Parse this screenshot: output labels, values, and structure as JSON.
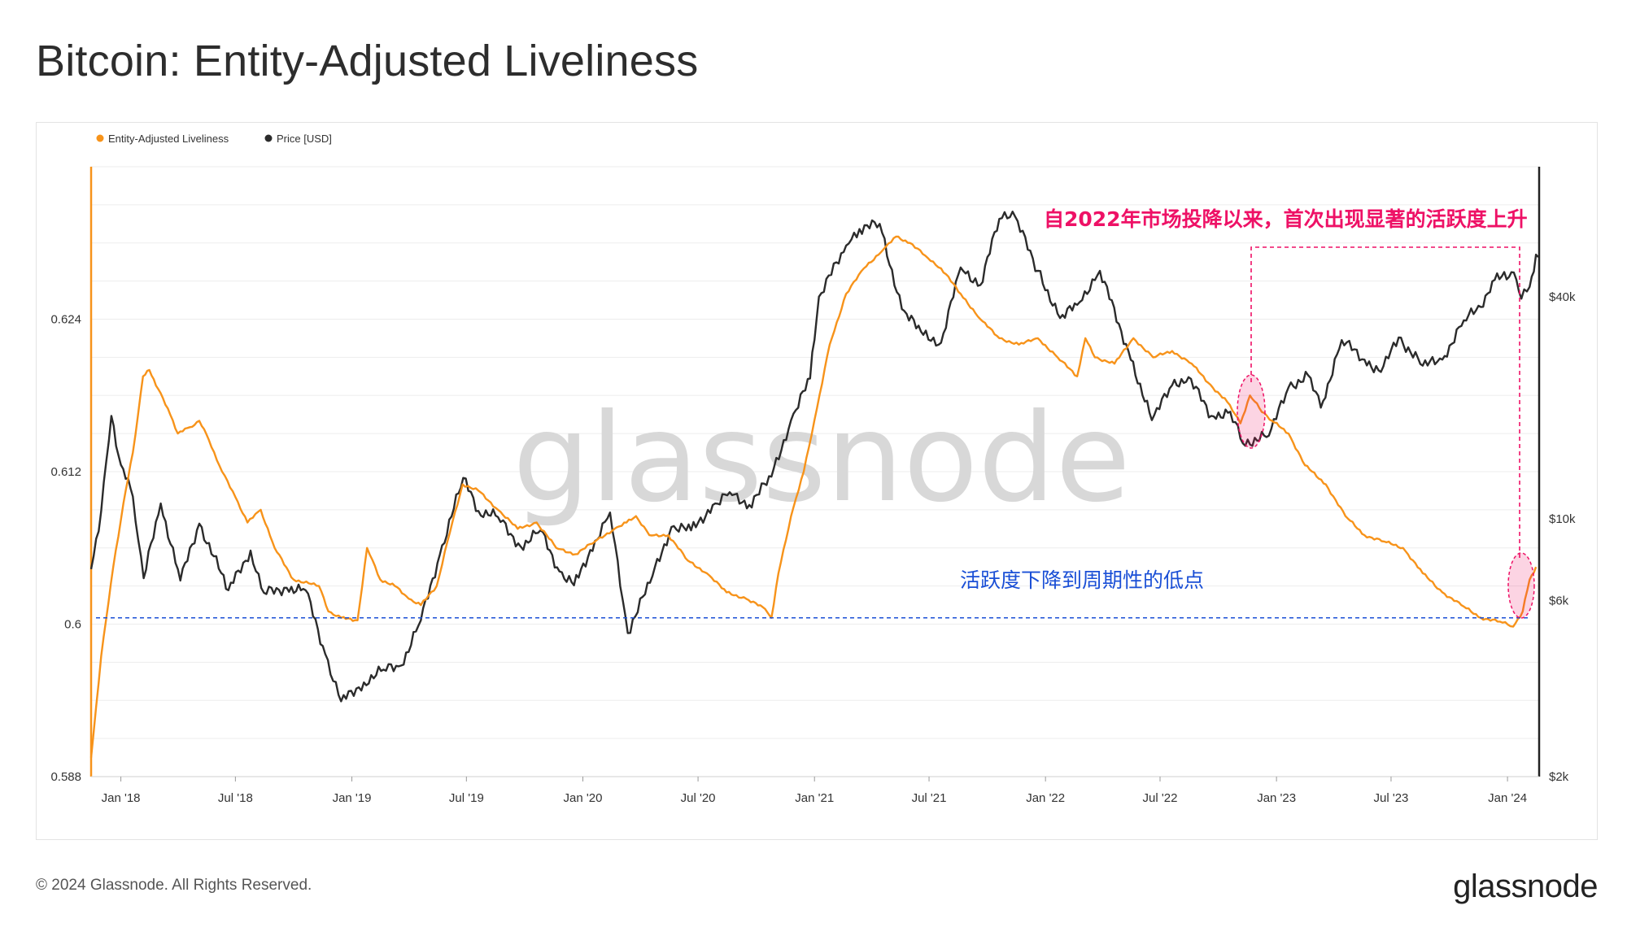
{
  "title": "Bitcoin: Entity-Adjusted Liveliness",
  "footer": "© 2024 Glassnode. All Rights Reserved.",
  "brand": "glassnode",
  "watermark": "glassnode",
  "colors": {
    "liveliness": "#f7931a",
    "price": "#2b2b2b",
    "annotation_red": "#ee1166",
    "annotation_blue": "#1a4fd6"
  },
  "chart_data": {
    "type": "line",
    "legend": [
      "Entity-Adjusted Liveliness",
      "Price [USD]"
    ],
    "legend_position": "top-left",
    "x_ticks": [
      "Jan '18",
      "Jul '18",
      "Jan '19",
      "Jul '19",
      "Jan '20",
      "Jul '20",
      "Jan '21",
      "Jul '21",
      "Jan '22",
      "Jul '22",
      "Jan '23",
      "Jul '23",
      "Jan '24"
    ],
    "y_left_ticks": [
      "0.624",
      "0.612",
      "0.6",
      "0.588"
    ],
    "y_left_range": [
      0.588,
      0.636
    ],
    "y_right_ticks": [
      "$40k",
      "$10k",
      "$6k",
      "$2k"
    ],
    "y_right_scale": "log",
    "grid": true,
    "x_range": [
      "2017-11-15",
      "2024-02-20"
    ],
    "series": [
      {
        "name": "Entity-Adjusted Liveliness",
        "axis": "left",
        "points": [
          [
            "2017-11-15",
            0.5895
          ],
          [
            "2017-12-01",
            0.5975
          ],
          [
            "2017-12-20",
            0.6045
          ],
          [
            "2018-01-05",
            0.6095
          ],
          [
            "2018-01-20",
            0.6135
          ],
          [
            "2018-02-05",
            0.6195
          ],
          [
            "2018-02-15",
            0.62
          ],
          [
            "2018-03-01",
            0.6185
          ],
          [
            "2018-03-20",
            0.6165
          ],
          [
            "2018-04-01",
            0.615
          ],
          [
            "2018-04-20",
            0.6155
          ],
          [
            "2018-05-05",
            0.616
          ],
          [
            "2018-05-20",
            0.6145
          ],
          [
            "2018-06-10",
            0.612
          ],
          [
            "2018-07-01",
            0.61
          ],
          [
            "2018-07-20",
            0.608
          ],
          [
            "2018-08-10",
            0.609
          ],
          [
            "2018-09-01",
            0.606
          ],
          [
            "2018-10-01",
            0.6035
          ],
          [
            "2018-11-10",
            0.603
          ],
          [
            "2018-11-25",
            0.601
          ],
          [
            "2018-12-15",
            0.6005
          ],
          [
            "2019-01-10",
            0.6003
          ],
          [
            "2019-01-25",
            0.606
          ],
          [
            "2019-02-15",
            0.6035
          ],
          [
            "2019-03-10",
            0.603
          ],
          [
            "2019-04-01",
            0.602
          ],
          [
            "2019-04-20",
            0.6015
          ],
          [
            "2019-05-15",
            0.603
          ],
          [
            "2019-06-01",
            0.6065
          ],
          [
            "2019-06-25",
            0.611
          ],
          [
            "2019-07-20",
            0.6105
          ],
          [
            "2019-08-20",
            0.609
          ],
          [
            "2019-09-20",
            0.6075
          ],
          [
            "2019-10-20",
            0.608
          ],
          [
            "2019-11-20",
            0.606
          ],
          [
            "2019-12-20",
            0.6055
          ],
          [
            "2020-01-20",
            0.6065
          ],
          [
            "2020-02-20",
            0.6075
          ],
          [
            "2020-03-10",
            0.608
          ],
          [
            "2020-03-25",
            0.6085
          ],
          [
            "2020-04-15",
            0.607
          ],
          [
            "2020-05-15",
            0.607
          ],
          [
            "2020-06-15",
            0.605
          ],
          [
            "2020-07-15",
            0.604
          ],
          [
            "2020-08-15",
            0.6025
          ],
          [
            "2020-09-15",
            0.602
          ],
          [
            "2020-10-15",
            0.6012
          ],
          [
            "2020-10-25",
            0.6005
          ],
          [
            "2020-11-05",
            0.604
          ],
          [
            "2020-11-25",
            0.6085
          ],
          [
            "2020-12-15",
            0.612
          ],
          [
            "2021-01-05",
            0.617
          ],
          [
            "2021-01-25",
            0.622
          ],
          [
            "2021-02-20",
            0.626
          ],
          [
            "2021-03-20",
            0.628
          ],
          [
            "2021-04-20",
            0.6295
          ],
          [
            "2021-05-10",
            0.6305
          ],
          [
            "2021-06-01",
            0.63
          ],
          [
            "2021-06-25",
            0.629
          ],
          [
            "2021-07-20",
            0.628
          ],
          [
            "2021-08-20",
            0.626
          ],
          [
            "2021-09-20",
            0.624
          ],
          [
            "2021-10-20",
            0.6225
          ],
          [
            "2021-11-20",
            0.622
          ],
          [
            "2021-12-20",
            0.6225
          ],
          [
            "2022-01-20",
            0.621
          ],
          [
            "2022-02-20",
            0.6195
          ],
          [
            "2022-03-05",
            0.6225
          ],
          [
            "2022-03-20",
            0.621
          ],
          [
            "2022-04-20",
            0.6205
          ],
          [
            "2022-05-20",
            0.6225
          ],
          [
            "2022-06-20",
            0.621
          ],
          [
            "2022-07-20",
            0.6215
          ],
          [
            "2022-08-20",
            0.6205
          ],
          [
            "2022-09-15",
            0.619
          ],
          [
            "2022-10-15",
            0.6175
          ],
          [
            "2022-11-05",
            0.6158
          ],
          [
            "2022-11-20",
            0.618
          ],
          [
            "2022-12-05",
            0.617
          ],
          [
            "2022-12-25",
            0.616
          ],
          [
            "2023-01-20",
            0.615
          ],
          [
            "2023-02-15",
            0.6125
          ],
          [
            "2023-03-20",
            0.611
          ],
          [
            "2023-04-20",
            0.6085
          ],
          [
            "2023-05-20",
            0.607
          ],
          [
            "2023-06-20",
            0.6065
          ],
          [
            "2023-07-20",
            0.606
          ],
          [
            "2023-08-20",
            0.604
          ],
          [
            "2023-09-20",
            0.6025
          ],
          [
            "2023-10-20",
            0.6015
          ],
          [
            "2023-11-20",
            0.6005
          ],
          [
            "2023-12-20",
            0.6002
          ],
          [
            "2024-01-10",
            0.5998
          ],
          [
            "2024-01-25",
            0.601
          ],
          [
            "2024-02-05",
            0.6035
          ],
          [
            "2024-02-15",
            0.6045
          ]
        ]
      },
      {
        "name": "Price [USD]",
        "axis": "right",
        "points": [
          [
            "2017-11-15",
            7300
          ],
          [
            "2017-12-01",
            10500
          ],
          [
            "2017-12-17",
            19000
          ],
          [
            "2018-01-01",
            14000
          ],
          [
            "2018-01-20",
            11500
          ],
          [
            "2018-02-06",
            6900
          ],
          [
            "2018-03-05",
            11000
          ],
          [
            "2018-04-05",
            6800
          ],
          [
            "2018-05-05",
            9700
          ],
          [
            "2018-06-20",
            6400
          ],
          [
            "2018-07-25",
            8200
          ],
          [
            "2018-08-15",
            6300
          ],
          [
            "2018-09-20",
            6500
          ],
          [
            "2018-10-20",
            6400
          ],
          [
            "2018-11-20",
            4300
          ],
          [
            "2018-12-15",
            3200
          ],
          [
            "2019-01-20",
            3600
          ],
          [
            "2019-02-20",
            3900
          ],
          [
            "2019-03-20",
            4000
          ],
          [
            "2019-04-20",
            5300
          ],
          [
            "2019-05-20",
            8000
          ],
          [
            "2019-06-26",
            12900
          ],
          [
            "2019-07-20",
            10500
          ],
          [
            "2019-08-20",
            10100
          ],
          [
            "2019-09-25",
            8400
          ],
          [
            "2019-10-26",
            9300
          ],
          [
            "2019-11-25",
            7200
          ],
          [
            "2019-12-18",
            6600
          ],
          [
            "2020-01-20",
            8700
          ],
          [
            "2020-02-13",
            10400
          ],
          [
            "2020-03-12",
            4900
          ],
          [
            "2020-04-20",
            7000
          ],
          [
            "2020-05-20",
            9500
          ],
          [
            "2020-06-20",
            9300
          ],
          [
            "2020-07-28",
            11000
          ],
          [
            "2020-08-20",
            11800
          ],
          [
            "2020-09-20",
            10900
          ],
          [
            "2020-10-25",
            13000
          ],
          [
            "2020-11-25",
            18500
          ],
          [
            "2020-12-25",
            24000
          ],
          [
            "2021-01-08",
            40000
          ],
          [
            "2021-02-20",
            55000
          ],
          [
            "2021-03-13",
            61000
          ],
          [
            "2021-04-14",
            63000
          ],
          [
            "2021-05-19",
            37000
          ],
          [
            "2021-06-22",
            31500
          ],
          [
            "2021-07-20",
            30000
          ],
          [
            "2021-08-20",
            48000
          ],
          [
            "2021-09-20",
            43000
          ],
          [
            "2021-10-20",
            65000
          ],
          [
            "2021-11-10",
            68000
          ],
          [
            "2021-12-20",
            47000
          ],
          [
            "2022-01-24",
            35000
          ],
          [
            "2022-02-20",
            38000
          ],
          [
            "2022-03-28",
            47000
          ],
          [
            "2022-05-12",
            28500
          ],
          [
            "2022-06-18",
            18500
          ],
          [
            "2022-07-20",
            23000
          ],
          [
            "2022-08-15",
            24200
          ],
          [
            "2022-09-20",
            19000
          ],
          [
            "2022-10-20",
            19500
          ],
          [
            "2022-11-09",
            16000
          ],
          [
            "2022-12-20",
            16800
          ],
          [
            "2023-01-20",
            22700
          ],
          [
            "2023-02-20",
            24500
          ],
          [
            "2023-03-12",
            20000
          ],
          [
            "2023-04-14",
            30500
          ],
          [
            "2023-05-20",
            27000
          ],
          [
            "2023-06-15",
            25000
          ],
          [
            "2023-07-13",
            31000
          ],
          [
            "2023-08-20",
            26000
          ],
          [
            "2023-09-20",
            27000
          ],
          [
            "2023-10-24",
            34500
          ],
          [
            "2023-11-20",
            37500
          ],
          [
            "2023-12-08",
            44000
          ],
          [
            "2024-01-11",
            46500
          ],
          [
            "2024-01-23",
            39500
          ],
          [
            "2024-02-05",
            42500
          ],
          [
            "2024-02-15",
            52000
          ],
          [
            "2024-02-20",
            51500
          ]
        ]
      }
    ],
    "annotations": [
      {
        "text": "自2022年市场投降以来，首次出现显著的活跃度上升",
        "color": "red"
      },
      {
        "text": "活跃度下降到周期性的低点",
        "color": "blue"
      }
    ]
  }
}
